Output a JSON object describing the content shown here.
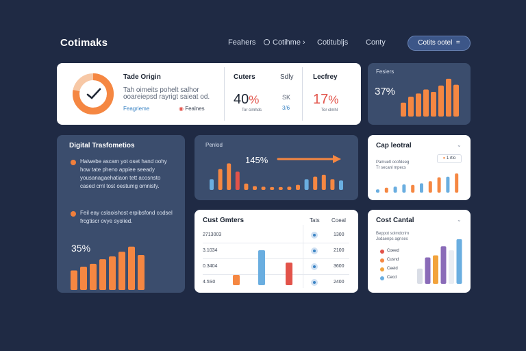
{
  "header": {
    "brand": "Cotimaks",
    "nav": [
      "Feahers",
      "Cotihme",
      "Cotitubljs",
      "Conty"
    ],
    "cta_label": "Cotits ootel"
  },
  "colors": {
    "background": "#1f2a44",
    "orange": "#f58742",
    "blue": "#6aaee0",
    "purple": "#8a6bb8",
    "slate": "#3b4d6d"
  },
  "origin_card": {
    "title": "Tade Origin",
    "body": "Tah oimeits pohelt salhor ooareiepsd rayrigt saieat od.",
    "link": "Feagrieme",
    "footer": "Fealnes",
    "gauge_fraction": 0.78,
    "col1_title": "Cuters",
    "col1_value": "40",
    "col1_unit": "%",
    "col1_sub": "Tor clmhds",
    "col2_title": "Sdly",
    "col2_value": "SK",
    "col2_sub": "3/6",
    "col3_title": "Lecfrey",
    "col3_value": "17",
    "col3_unit": "%",
    "col3_sub": "Tor clmhl"
  },
  "features_card": {
    "title": "Fesiers",
    "value": "37%",
    "bars": [
      0.35,
      0.5,
      0.58,
      0.68,
      0.62,
      0.78,
      0.95,
      0.8
    ]
  },
  "digital_card": {
    "title": "Digital Trasfometios",
    "para1": "Haiwebe ascam yot oset hand oohy how tate pheno appiee seeady yousanagaehatiaon tett acosnsto cased cml tost oestumg omnisfy.",
    "para2": "Feil eay cslaoishost erpibsfond codsel frcgtiscr ovye syolied.",
    "value": "35%",
    "bars": [
      0.42,
      0.5,
      0.56,
      0.66,
      0.72,
      0.82,
      0.93,
      0.75
    ]
  },
  "period_card": {
    "title": "Penlod",
    "value": "145%",
    "bars": [
      {
        "v": 0.34,
        "c": "blue"
      },
      {
        "v": 0.66,
        "c": "orange"
      },
      {
        "v": 0.84,
        "c": "orange"
      },
      {
        "v": 0.58,
        "c": "red"
      },
      {
        "v": 0.2,
        "c": "orange"
      },
      {
        "v": 0.12,
        "c": "orange"
      },
      {
        "v": 0.1,
        "c": "orange"
      },
      {
        "v": 0.09,
        "c": "orange"
      },
      {
        "v": 0.09,
        "c": "orange"
      },
      {
        "v": 0.1,
        "c": "orange"
      },
      {
        "v": 0.16,
        "c": "orange"
      },
      {
        "v": 0.34,
        "c": "blue"
      },
      {
        "v": 0.42,
        "c": "orange"
      },
      {
        "v": 0.48,
        "c": "orange"
      },
      {
        "v": 0.34,
        "c": "orange"
      },
      {
        "v": 0.3,
        "c": "blue"
      }
    ]
  },
  "cap_card": {
    "title": "Cap leotral",
    "sub1": "Pamuetl ocofdeeg",
    "sub2": "Tr secanl mpecs",
    "badge": "1 rtlo",
    "bars": [
      {
        "v": 0.12,
        "c": "blue"
      },
      {
        "v": 0.18,
        "c": "orange"
      },
      {
        "v": 0.22,
        "c": "blue"
      },
      {
        "v": 0.3,
        "c": "blue"
      },
      {
        "v": 0.28,
        "c": "orange"
      },
      {
        "v": 0.34,
        "c": "blue"
      },
      {
        "v": 0.42,
        "c": "orange"
      },
      {
        "v": 0.56,
        "c": "orange"
      },
      {
        "v": 0.58,
        "c": "blue"
      },
      {
        "v": 0.7,
        "c": "orange"
      }
    ]
  },
  "cost_card": {
    "title": "Cust Gmters",
    "col_a": "Tats",
    "col_b": "Coeal",
    "rows": [
      {
        "label": "2713003",
        "value": "1300",
        "bar": 0,
        "color": "orange"
      },
      {
        "label": "3.1034",
        "value": "2100",
        "bar": 0,
        "color": "orange"
      },
      {
        "label": "0.3404",
        "value": "3600",
        "bar": 0.78,
        "color": "blue"
      },
      {
        "label": "4.5S0",
        "value": "2400",
        "bar": 0.22,
        "color": "orange"
      }
    ],
    "bar_b": 0.5
  },
  "control_card": {
    "title": "Cost Cantal",
    "sub1": "Beppot solmdcrirn",
    "sub2": "Jsdaenps agnses",
    "legend": [
      {
        "label": "Coeed",
        "color": "#e2534a"
      },
      {
        "label": "Cusnd",
        "color": "#f58742"
      },
      {
        "label": "Ceeid",
        "color": "#f2a33c"
      },
      {
        "label": "Cecd",
        "color": "#6aaee0"
      }
    ],
    "bars": [
      {
        "v": 0.3,
        "c": "#d9dde6"
      },
      {
        "v": 0.52,
        "c": "#8a6bb8"
      },
      {
        "v": 0.56,
        "c": "#f2a33c"
      },
      {
        "v": 0.74,
        "c": "#8a6bb8"
      },
      {
        "v": 0.66,
        "c": "#e9edf3"
      },
      {
        "v": 0.88,
        "c": "#6aaee0"
      }
    ]
  }
}
